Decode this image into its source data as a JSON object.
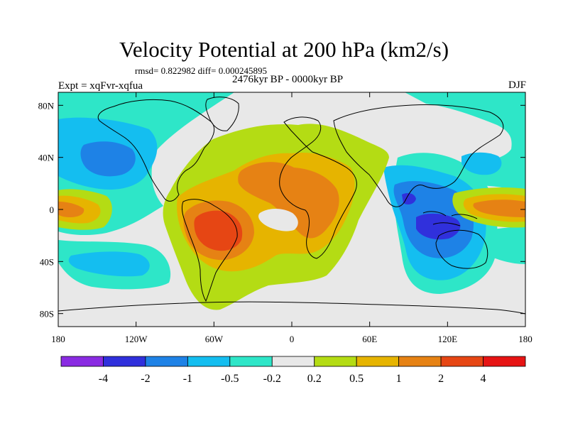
{
  "title": "Velocity Potential at 200 hPa (km2/s)",
  "stats": "rmsd= 0.822982 diff= 0.000245895",
  "expt": "Expt = xqFvr-xqfua",
  "period": "2476kyr BP - 0000kyr BP",
  "season": "DJF",
  "lat_ticks": [
    "80N",
    "40N",
    "0",
    "40S",
    "80S"
  ],
  "lon_ticks": [
    "180",
    "120W",
    "60W",
    "0",
    "60E",
    "120E",
    "180"
  ],
  "colorbar": {
    "labels": [
      "-4",
      "-2",
      "-1",
      "-0.5",
      "-0.2",
      "0.2",
      "0.5",
      "1",
      "2",
      "4"
    ],
    "colors": [
      "#8a2be2",
      "#3030dc",
      "#1e82e6",
      "#14bef0",
      "#2ee6c8",
      "#e8e8e8",
      "#b4dc14",
      "#e6b400",
      "#e68214",
      "#e64614",
      "#e61414"
    ]
  },
  "level_colors": {
    "blue_strong": "#3030dc",
    "blue": "#1e82e6",
    "cyan": "#14bef0",
    "teal": "#2ee6c8",
    "neutral": "#e8e8e8",
    "yellowgreen": "#b4dc14",
    "gold": "#e6b400",
    "orange": "#e68214",
    "redorange": "#e64614"
  }
}
